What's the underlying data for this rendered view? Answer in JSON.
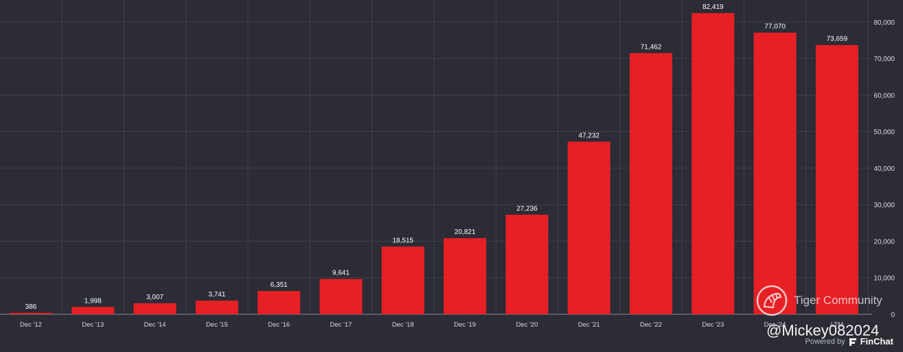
{
  "chart_data": {
    "type": "bar",
    "categories": [
      "Dec '12",
      "Dec '13",
      "Dec '14",
      "Dec '15",
      "Dec '16",
      "Dec '17",
      "Dec '18",
      "Dec '19",
      "Dec '20",
      "Dec '21",
      "Dec '22",
      "Dec '23",
      "Dec '24",
      "LTM"
    ],
    "values": [
      386,
      1998,
      3007,
      3741,
      6351,
      9641,
      18515,
      20821,
      27236,
      47232,
      71462,
      82419,
      77070,
      73659
    ],
    "data_labels": [
      "386",
      "1,998",
      "3,007",
      "3,741",
      "6,351",
      "9,641",
      "18,515",
      "20,821",
      "27,236",
      "47,232",
      "71,462",
      "82,419",
      "77,070",
      "73,659"
    ],
    "y_ticks": [
      0,
      10000,
      20000,
      30000,
      40000,
      50000,
      60000,
      70000,
      80000
    ],
    "y_tick_labels": [
      "0",
      "10,000",
      "20,000",
      "30,000",
      "40,000",
      "50,000",
      "60,000",
      "70,000",
      "80,000"
    ],
    "ylim": [
      0,
      86000
    ],
    "y_axis_side": "right",
    "grid": true,
    "bar_color": "#e62025",
    "title": "",
    "xlabel": "",
    "ylabel": ""
  },
  "watermark": {
    "text": "Tiger Community",
    "handle": "@Mickey082024"
  },
  "footer": {
    "powered_by": "Powered by",
    "brand": "FinChat"
  },
  "icons": {
    "watermark": "tiger-community-logo-icon",
    "brand": "finchat-logo-icon"
  }
}
